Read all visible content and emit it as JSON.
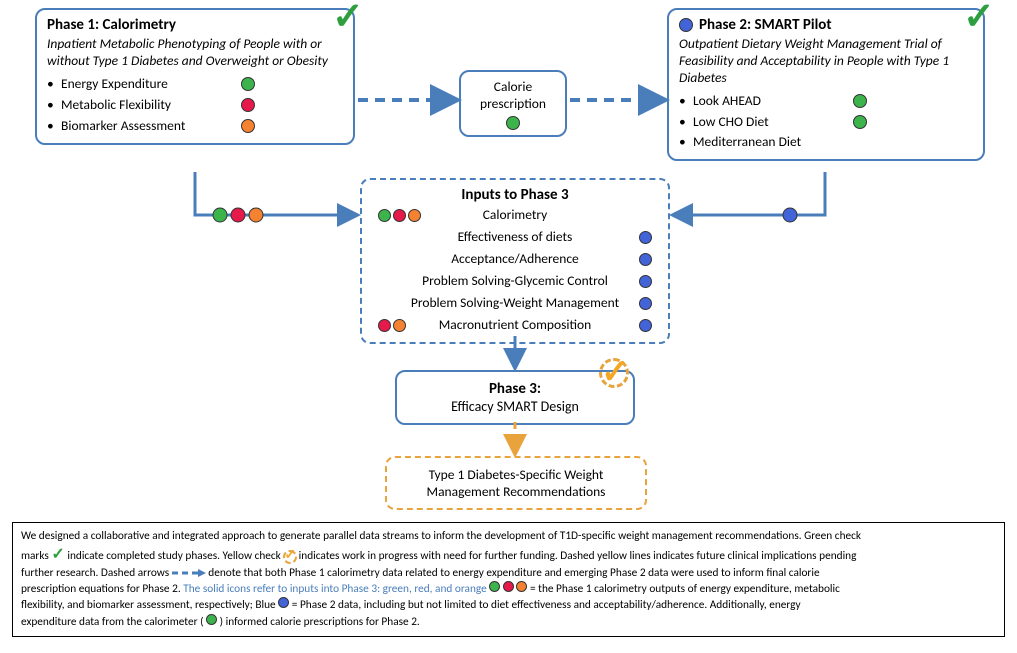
{
  "colors": {
    "green": "#3cb44b",
    "red": "#e6194b",
    "orange": "#f58231",
    "blue": "#4363d8",
    "boxBorder": "#4a7ebb",
    "orangeDash": "#e8a33d",
    "checkGreen": "#2e9f3e",
    "checkOrange": "#f5a623"
  },
  "phase1": {
    "title": "Phase 1: Calorimetry",
    "subtitle": "Inpatient Metabolic Phenotyping of People with or without Type 1 Diabetes and Overweight or Obesity",
    "items": [
      {
        "label": "Energy Expenditure",
        "dot": "green"
      },
      {
        "label": "Metabolic Flexibility",
        "dot": "red"
      },
      {
        "label": "Biomarker Assessment",
        "dot": "orange"
      }
    ]
  },
  "calorieBox": {
    "line1": "Calorie",
    "line2": "prescription",
    "dot": "green"
  },
  "phase2": {
    "title": "Phase 2: SMART Pilot",
    "titleDot": "blue",
    "subtitle": "Outpatient Dietary Weight Management Trial of Feasibility and Acceptability in People with Type 1 Diabetes",
    "items": [
      {
        "label": "Look AHEAD",
        "dot": "green"
      },
      {
        "label": "Low CHO Diet",
        "dot": "green"
      },
      {
        "label": "Mediterranean Diet",
        "dot": null
      }
    ]
  },
  "inputsP3": {
    "title": "Inputs to Phase 3",
    "rows": [
      {
        "left": [
          "green",
          "red",
          "orange"
        ],
        "label": "Calorimetry",
        "right": []
      },
      {
        "left": [],
        "label": "Effectiveness of diets",
        "right": [
          "blue"
        ]
      },
      {
        "left": [],
        "label": "Acceptance/Adherence",
        "right": [
          "blue"
        ]
      },
      {
        "left": [],
        "label": "Problem Solving-Glycemic Control",
        "right": [
          "blue"
        ]
      },
      {
        "left": [],
        "label": "Problem Solving-Weight Management",
        "right": [
          "blue"
        ]
      },
      {
        "left": [
          "red",
          "orange"
        ],
        "label": "Macronutrient Composition",
        "right": [
          "blue"
        ]
      }
    ]
  },
  "phase3": {
    "title": "Phase 3:",
    "sub": "Efficacy SMART Design"
  },
  "outcome": {
    "line1": "Type 1 Diabetes-Specific Weight",
    "line2": "Management Recommendations"
  },
  "legend": {
    "l1a": "We designed a collaborative and integrated approach to generate parallel data streams to inform the development of T1D-specific weight management recommendations. Green check",
    "l1b": "marks",
    "l1c": " indicate completed study phases. Yellow check ",
    "l1d": " indicates work in progress with need for further funding. Dashed yellow lines indicates future clinical implications pending",
    "l2a": "further research. Dashed arrows ",
    "l2b": " denote that both Phase 1 calorimetry data related to energy expenditure and emerging Phase 2 data were used to inform final calorie",
    "l3a": "prescription equations for Phase 2. ",
    "l3b": "The solid icons refer to inputs into Phase 3: green, red, and orange",
    "l3c": " = the Phase 1 calorimetry outputs of energy expenditure, metabolic",
    "l4a": "flexibility, and biomarker assessment, respectively; Blue ",
    "l4b": " = Phase 2 data, including but not limited to diet effectiveness and acceptability/adherence.  Additionally, energy",
    "l5a": "expenditure data from the calorimeter (",
    "l5b": ") informed calorie prescriptions for Phase 2."
  }
}
